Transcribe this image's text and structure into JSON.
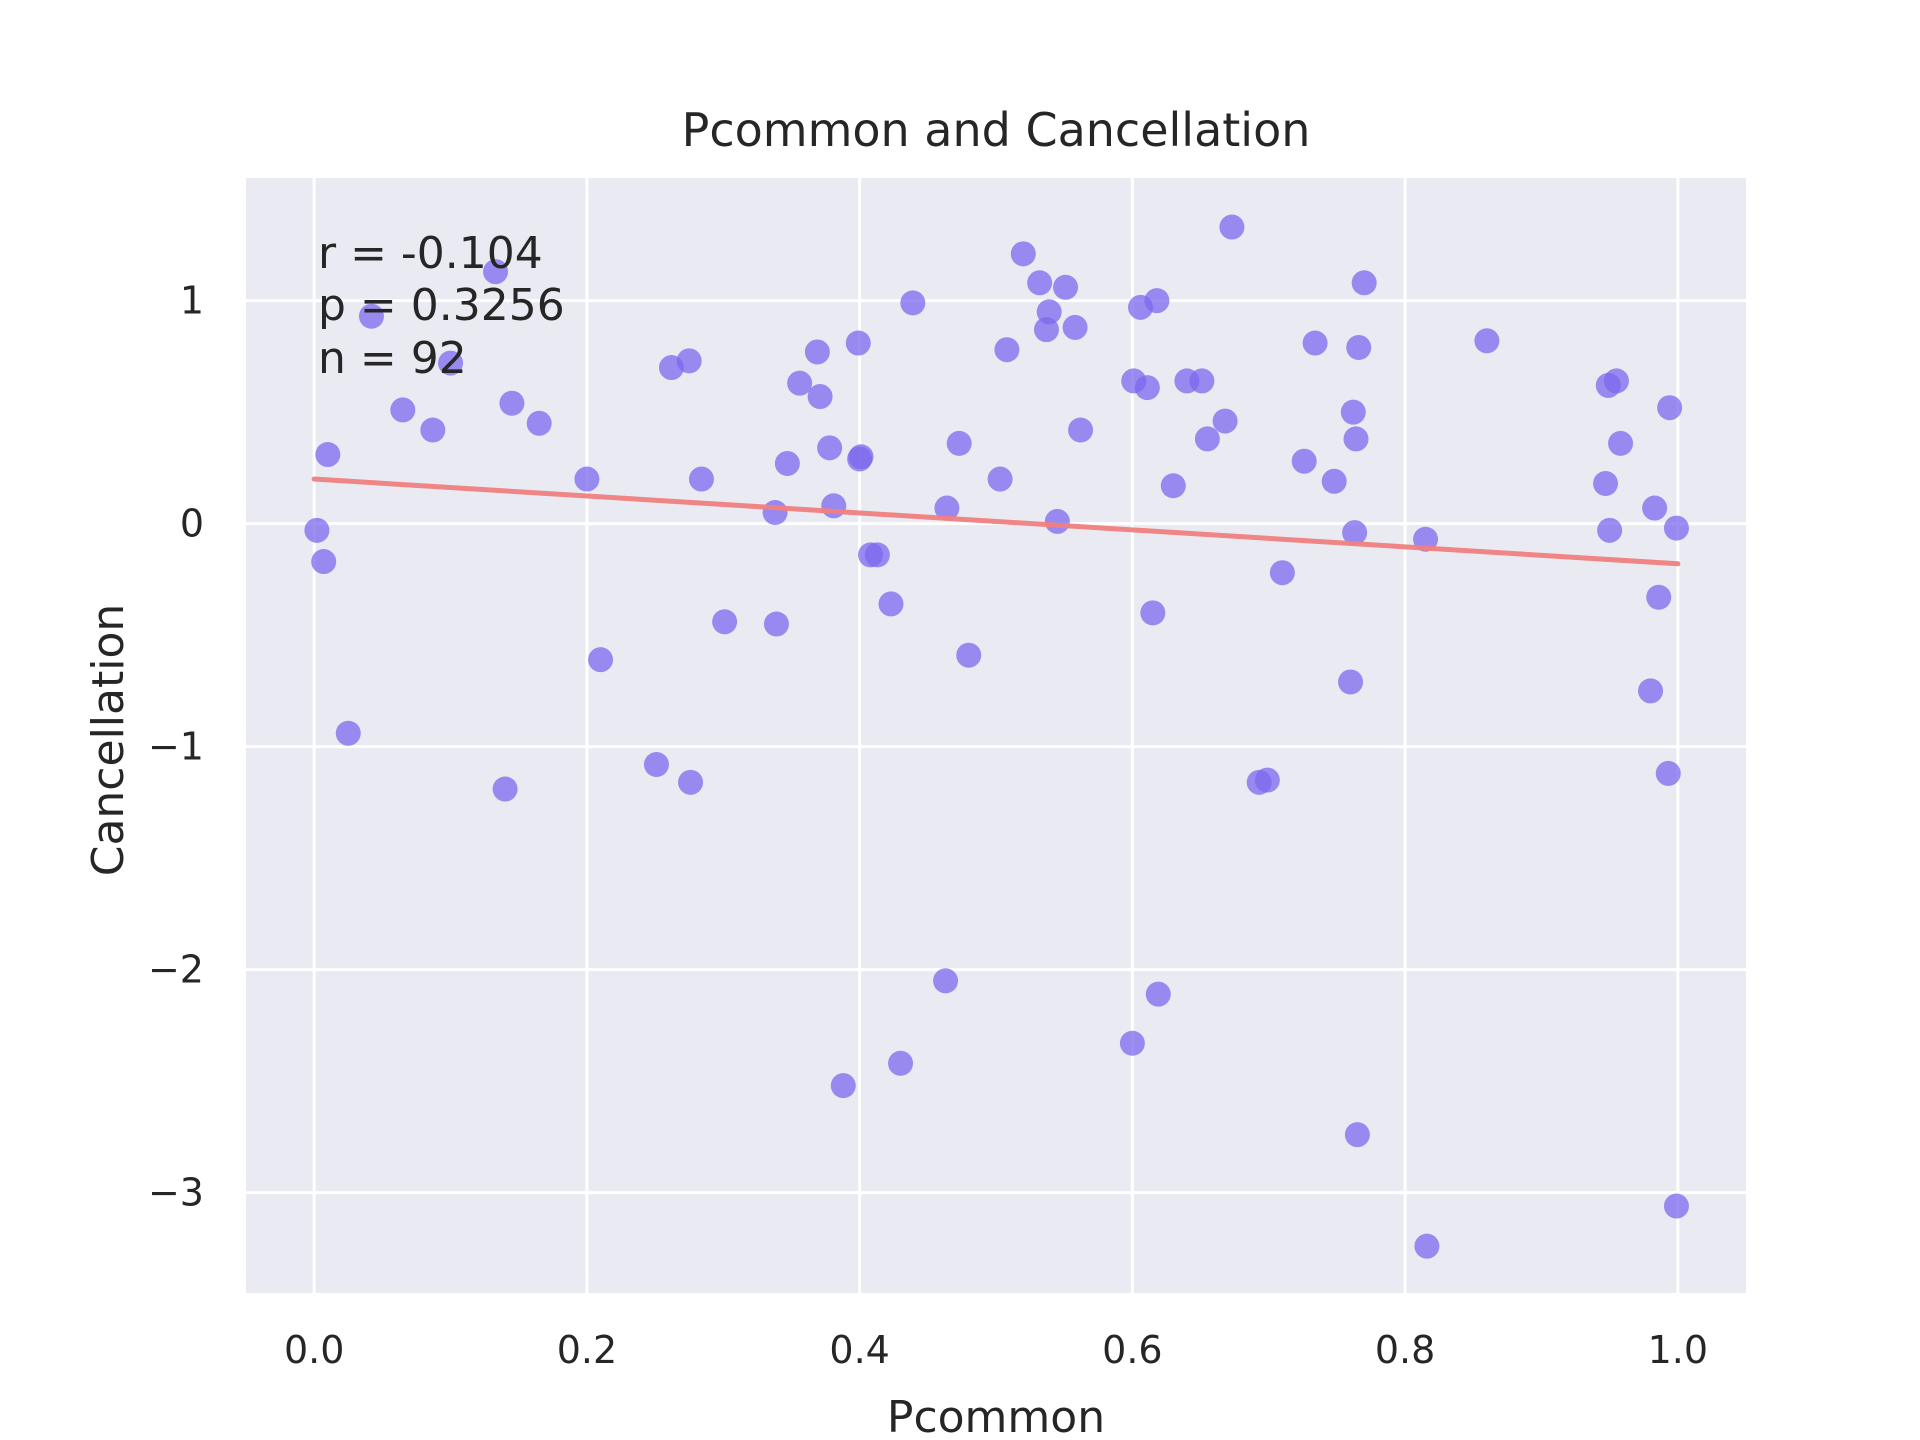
{
  "chart_data": {
    "type": "scatter",
    "title": "Pcommon and Cancellation",
    "xlabel": "Pcommon",
    "ylabel": "Cancellation",
    "xlim": [
      -0.05,
      1.05
    ],
    "ylim": [
      -3.45,
      1.55
    ],
    "xticks": [
      0.0,
      0.2,
      0.4,
      0.6,
      0.8,
      1.0
    ],
    "xtick_labels": [
      "0.0",
      "0.2",
      "0.4",
      "0.6",
      "0.8",
      "1.0"
    ],
    "yticks": [
      1,
      0,
      -1,
      -2,
      -3
    ],
    "ytick_labels": [
      "1",
      "0",
      "−1",
      "−2",
      "−3"
    ],
    "grid": true,
    "background_color": "#eaeaf2",
    "point_color": "#7b68ee",
    "line_color": "#f08080",
    "annotations": [
      "r = -0.104",
      "p = 0.3256",
      "n = 92"
    ],
    "regression_line": {
      "x": [
        0.0,
        1.0
      ],
      "y": [
        0.2,
        -0.18
      ]
    },
    "points": [
      {
        "x": 0.002,
        "y": -0.03
      },
      {
        "x": 0.007,
        "y": -0.17
      },
      {
        "x": 0.01,
        "y": 0.31
      },
      {
        "x": 0.025,
        "y": -0.94
      },
      {
        "x": 0.042,
        "y": 0.93
      },
      {
        "x": 0.065,
        "y": 0.51
      },
      {
        "x": 0.087,
        "y": 0.42
      },
      {
        "x": 0.1,
        "y": 0.72
      },
      {
        "x": 0.133,
        "y": 1.13
      },
      {
        "x": 0.14,
        "y": -1.19
      },
      {
        "x": 0.145,
        "y": 0.54
      },
      {
        "x": 0.165,
        "y": 0.45
      },
      {
        "x": 0.2,
        "y": 0.2
      },
      {
        "x": 0.21,
        "y": -0.61
      },
      {
        "x": 0.251,
        "y": -1.08
      },
      {
        "x": 0.262,
        "y": 0.7
      },
      {
        "x": 0.275,
        "y": 0.73
      },
      {
        "x": 0.276,
        "y": -1.16
      },
      {
        "x": 0.284,
        "y": 0.2
      },
      {
        "x": 0.301,
        "y": -0.44
      },
      {
        "x": 0.338,
        "y": 0.05
      },
      {
        "x": 0.339,
        "y": -0.45
      },
      {
        "x": 0.347,
        "y": 0.27
      },
      {
        "x": 0.356,
        "y": 0.63
      },
      {
        "x": 0.369,
        "y": 0.77
      },
      {
        "x": 0.371,
        "y": 0.57
      },
      {
        "x": 0.378,
        "y": 0.34
      },
      {
        "x": 0.381,
        "y": 0.08
      },
      {
        "x": 0.388,
        "y": -2.52
      },
      {
        "x": 0.399,
        "y": 0.81
      },
      {
        "x": 0.4,
        "y": 0.29
      },
      {
        "x": 0.401,
        "y": 0.3
      },
      {
        "x": 0.408,
        "y": -0.14
      },
      {
        "x": 0.413,
        "y": -0.14
      },
      {
        "x": 0.423,
        "y": -0.36
      },
      {
        "x": 0.43,
        "y": -2.42
      },
      {
        "x": 0.439,
        "y": 0.99
      },
      {
        "x": 0.464,
        "y": 0.07
      },
      {
        "x": 0.463,
        "y": -2.05
      },
      {
        "x": 0.473,
        "y": 0.36
      },
      {
        "x": 0.48,
        "y": -0.59
      },
      {
        "x": 0.503,
        "y": 0.2
      },
      {
        "x": 0.508,
        "y": 0.78
      },
      {
        "x": 0.52,
        "y": 1.21
      },
      {
        "x": 0.532,
        "y": 1.08
      },
      {
        "x": 0.537,
        "y": 0.87
      },
      {
        "x": 0.539,
        "y": 0.95
      },
      {
        "x": 0.545,
        "y": 0.01
      },
      {
        "x": 0.551,
        "y": 1.06
      },
      {
        "x": 0.558,
        "y": 0.88
      },
      {
        "x": 0.562,
        "y": 0.42
      },
      {
        "x": 0.6,
        "y": -2.33
      },
      {
        "x": 0.601,
        "y": 0.64
      },
      {
        "x": 0.606,
        "y": 0.97
      },
      {
        "x": 0.611,
        "y": 0.61
      },
      {
        "x": 0.615,
        "y": -0.4
      },
      {
        "x": 0.618,
        "y": 1.0
      },
      {
        "x": 0.619,
        "y": -2.11
      },
      {
        "x": 0.63,
        "y": 0.17
      },
      {
        "x": 0.64,
        "y": 0.64
      },
      {
        "x": 0.651,
        "y": 0.64
      },
      {
        "x": 0.655,
        "y": 0.38
      },
      {
        "x": 0.668,
        "y": 0.46
      },
      {
        "x": 0.673,
        "y": 1.33
      },
      {
        "x": 0.693,
        "y": -1.16
      },
      {
        "x": 0.699,
        "y": -1.15
      },
      {
        "x": 0.71,
        "y": -0.22
      },
      {
        "x": 0.726,
        "y": 0.28
      },
      {
        "x": 0.734,
        "y": 0.81
      },
      {
        "x": 0.748,
        "y": 0.19
      },
      {
        "x": 0.76,
        "y": -0.71
      },
      {
        "x": 0.762,
        "y": 0.5
      },
      {
        "x": 0.763,
        "y": -0.04
      },
      {
        "x": 0.764,
        "y": 0.38
      },
      {
        "x": 0.765,
        "y": -2.74
      },
      {
        "x": 0.766,
        "y": 0.79
      },
      {
        "x": 0.77,
        "y": 1.08
      },
      {
        "x": 0.815,
        "y": -0.07
      },
      {
        "x": 0.816,
        "y": -3.24
      },
      {
        "x": 0.86,
        "y": 0.82
      },
      {
        "x": 0.947,
        "y": 0.18
      },
      {
        "x": 0.949,
        "y": 0.62
      },
      {
        "x": 0.95,
        "y": -0.03
      },
      {
        "x": 0.955,
        "y": 0.64
      },
      {
        "x": 0.958,
        "y": 0.36
      },
      {
        "x": 0.98,
        "y": -0.75
      },
      {
        "x": 0.983,
        "y": 0.07
      },
      {
        "x": 0.986,
        "y": -0.33
      },
      {
        "x": 0.993,
        "y": -1.12
      },
      {
        "x": 0.994,
        "y": 0.52
      },
      {
        "x": 0.999,
        "y": -0.02
      },
      {
        "x": 0.999,
        "y": -3.06
      }
    ]
  }
}
